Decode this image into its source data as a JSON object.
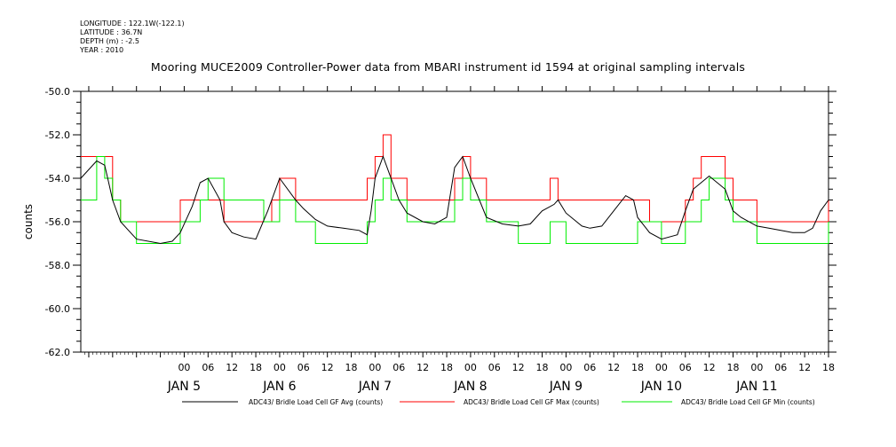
{
  "meta": {
    "longitude": "LONGITUDE : 122.1W(-122.1)",
    "latitude": "LATITUDE : 36.7N",
    "depth": "DEPTH (m) : -2.5",
    "year": "YEAR : 2010"
  },
  "chart_data": {
    "type": "line",
    "title": "Mooring MUCE2009 Controller-Power data from MBARI instrument id 1594 at original sampling intervals",
    "ylabel": "counts",
    "xlabel": "",
    "ylim": [
      -62.0,
      -50.0
    ],
    "y_ticks": [
      "-62.0",
      "-60.0",
      "-58.0",
      "-56.0",
      "-54.0",
      "-52.0",
      "-50.0"
    ],
    "x_hour_range": [
      -26,
      162
    ],
    "x_hour_ticks": [
      "00",
      "06",
      "12",
      "18",
      "00",
      "06",
      "12",
      "18",
      "00",
      "06",
      "12",
      "18",
      "00",
      "06",
      "12",
      "18",
      "00",
      "06",
      "12",
      "18",
      "00",
      "06",
      "12",
      "18",
      "00",
      "06",
      "12",
      "18"
    ],
    "day_labels": [
      "JAN  5",
      "JAN  6",
      "JAN  7",
      "JAN  8",
      "JAN  9",
      "JAN 10",
      "JAN 11"
    ],
    "grid": false,
    "legend_position": "bottom",
    "series": [
      {
        "name": "ADC43/ Bridle Load Cell GF Avg (counts)",
        "color": "#000000",
        "x": [
          -26,
          -22,
          -20,
          -19,
          -18,
          -16,
          -12,
          -6,
          -3,
          -1,
          2,
          4,
          6,
          9,
          10,
          12,
          15,
          18,
          21,
          24,
          28,
          30,
          33,
          36,
          40,
          44,
          46,
          47,
          48,
          50,
          54,
          56,
          60,
          63,
          66,
          68,
          70,
          72,
          76,
          80,
          84,
          87,
          90,
          93,
          94,
          96,
          100,
          102,
          105,
          108,
          111,
          113,
          114,
          117,
          120,
          124,
          126,
          128,
          132,
          136,
          138,
          140,
          144,
          147,
          150,
          153,
          156,
          158,
          160,
          162
        ],
        "y": [
          -54.0,
          -53.2,
          -53.4,
          -54.2,
          -55.0,
          -56.0,
          -56.8,
          -57.0,
          -56.9,
          -56.5,
          -55.3,
          -54.2,
          -54.0,
          -55.0,
          -56.0,
          -56.5,
          -56.7,
          -56.8,
          -55.5,
          -54.0,
          -55.0,
          -55.4,
          -55.9,
          -56.2,
          -56.3,
          -56.4,
          -56.6,
          -55.5,
          -54.0,
          -53.0,
          -55.0,
          -55.6,
          -56.0,
          -56.1,
          -55.8,
          -53.5,
          -53.0,
          -54.0,
          -55.8,
          -56.1,
          -56.2,
          -56.1,
          -55.5,
          -55.2,
          -55.0,
          -55.6,
          -56.2,
          -56.3,
          -56.2,
          -55.5,
          -54.8,
          -55.0,
          -55.8,
          -56.5,
          -56.8,
          -56.6,
          -55.5,
          -54.5,
          -53.9,
          -54.5,
          -55.5,
          -55.8,
          -56.2,
          -56.3,
          -56.4,
          -56.5,
          -56.5,
          -56.3,
          -55.5,
          -55.0
        ]
      },
      {
        "name": "ADC43/ Bridle Load Cell GF Max (counts)",
        "color": "#ff0000",
        "x": [
          -26,
          -18,
          -16,
          -6,
          -1,
          6,
          10,
          20,
          22,
          24,
          28,
          33,
          42,
          44,
          46,
          48,
          50,
          52,
          56,
          63,
          68,
          70,
          72,
          76,
          84,
          88,
          90,
          92,
          94,
          96,
          102,
          108,
          114,
          117,
          120,
          126,
          128,
          130,
          132,
          136,
          138,
          140,
          144,
          160,
          162
        ],
        "y": [
          -53.0,
          -55.0,
          -56.0,
          -56.0,
          -55.0,
          -55.0,
          -56.0,
          -56.0,
          -55.0,
          -54.0,
          -55.0,
          -55.0,
          -55.0,
          -55.0,
          -54.0,
          -53.0,
          -52.0,
          -54.0,
          -55.0,
          -55.0,
          -54.0,
          -53.0,
          -54.0,
          -55.0,
          -55.0,
          -55.0,
          -55.0,
          -54.0,
          -55.0,
          -55.0,
          -55.0,
          -55.0,
          -55.0,
          -56.0,
          -56.0,
          -55.0,
          -54.0,
          -53.0,
          -53.0,
          -54.0,
          -55.0,
          -55.0,
          -56.0,
          -56.0,
          -55.0
        ]
      },
      {
        "name": "ADC43/ Bridle Load Cell GF Min (counts)",
        "color": "#00ee00",
        "x": [
          -26,
          -22,
          -20,
          -18,
          -16,
          -12,
          -6,
          -1,
          4,
          6,
          10,
          20,
          24,
          28,
          33,
          42,
          46,
          48,
          50,
          52,
          56,
          63,
          68,
          70,
          72,
          76,
          84,
          88,
          92,
          96,
          102,
          108,
          114,
          120,
          126,
          130,
          132,
          136,
          138,
          140,
          144,
          160,
          162
        ],
        "y": [
          -55.0,
          -53.0,
          -54.0,
          -55.0,
          -56.0,
          -57.0,
          -57.0,
          -56.0,
          -55.0,
          -54.0,
          -55.0,
          -56.0,
          -55.0,
          -56.0,
          -57.0,
          -57.0,
          -56.0,
          -55.0,
          -54.0,
          -55.0,
          -56.0,
          -56.0,
          -55.0,
          -54.0,
          -55.0,
          -56.0,
          -57.0,
          -57.0,
          -56.0,
          -57.0,
          -57.0,
          -57.0,
          -56.0,
          -57.0,
          -56.0,
          -55.0,
          -54.0,
          -55.0,
          -56.0,
          -56.0,
          -57.0,
          -57.0,
          -56.0
        ]
      }
    ]
  }
}
